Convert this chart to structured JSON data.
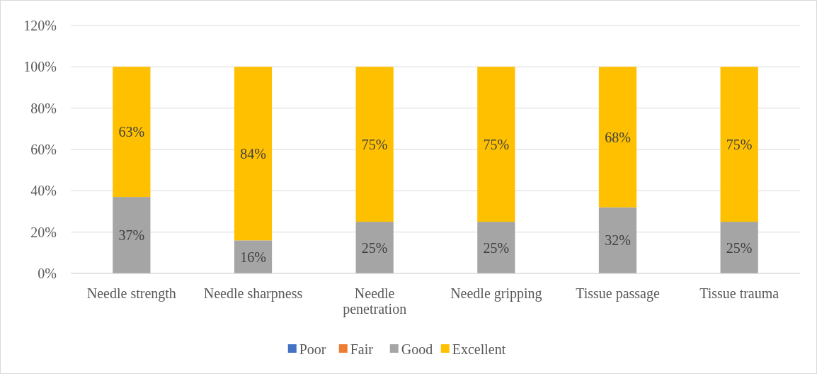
{
  "chart_data": {
    "type": "bar",
    "stacked": true,
    "categories": [
      "Needle strength",
      "Needle sharpness",
      "Needle penetration",
      "Needle gripping",
      "Tissue passage",
      "Tissue trauma"
    ],
    "series": [
      {
        "name": "Poor",
        "color": "#4472c4",
        "values": [
          0,
          0,
          0,
          0,
          0,
          0
        ],
        "value_labels": [
          null,
          null,
          null,
          null,
          null,
          null
        ]
      },
      {
        "name": "Fair",
        "color": "#ed7d31",
        "values": [
          0,
          0,
          0,
          0,
          0,
          0
        ],
        "value_labels": [
          null,
          null,
          null,
          null,
          null,
          null
        ]
      },
      {
        "name": "Good",
        "color": "#a5a5a5",
        "values": [
          37,
          16,
          25,
          25,
          32,
          25
        ],
        "value_labels": [
          "37%",
          "16%",
          "25%",
          "25%",
          "32%",
          "25%"
        ]
      },
      {
        "name": "Excellent",
        "color": "#ffc000",
        "values": [
          63,
          84,
          75,
          75,
          68,
          75
        ],
        "value_labels": [
          "63%",
          "84%",
          "75%",
          "75%",
          "68%",
          "75%"
        ]
      }
    ],
    "ylim": [
      0,
      120
    ],
    "yticks": [
      {
        "value": 0,
        "label": "0%"
      },
      {
        "value": 20,
        "label": "20%"
      },
      {
        "value": 40,
        "label": "40%"
      },
      {
        "value": 60,
        "label": "60%"
      },
      {
        "value": 80,
        "label": "80%"
      },
      {
        "value": 100,
        "label": "100%"
      },
      {
        "value": 120,
        "label": "120%"
      }
    ],
    "grid": "y",
    "legend": "bottom"
  }
}
